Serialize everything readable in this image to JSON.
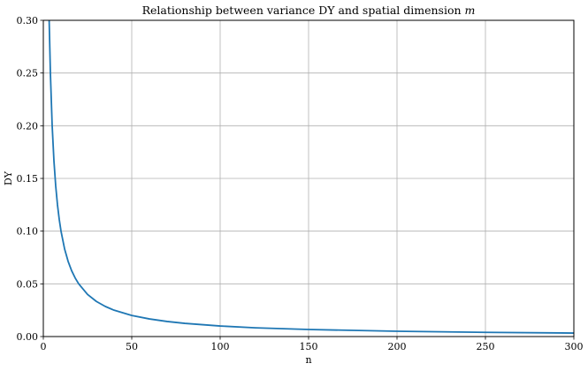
{
  "chart_data": {
    "type": "line",
    "title": "Relationship between variance DY and spatial dimension",
    "title_var": "m",
    "xlabel": "n",
    "ylabel": "DY",
    "xlim": [
      0,
      300
    ],
    "ylim": [
      0,
      0.3
    ],
    "x_ticks": [
      0,
      50,
      100,
      150,
      200,
      250,
      300
    ],
    "y_ticks": [
      0.0,
      0.05,
      0.1,
      0.15,
      0.2,
      0.25,
      0.3
    ],
    "x_tick_labels": [
      "0",
      "50",
      "100",
      "150",
      "200",
      "250",
      "300"
    ],
    "y_tick_labels": [
      "0.00",
      "0.05",
      "0.10",
      "0.15",
      "0.20",
      "0.25",
      "0.30"
    ],
    "grid": true,
    "line_color": "#1f77b4",
    "series": [
      {
        "x": [
          3.3,
          4,
          5,
          6,
          7,
          8,
          9,
          10,
          12,
          14,
          16,
          18,
          20,
          25,
          30,
          35,
          40,
          50,
          60,
          70,
          80,
          100,
          120,
          150,
          200,
          250,
          300
        ],
        "values": [
          0.3,
          0.25,
          0.2,
          0.1667,
          0.1429,
          0.125,
          0.1111,
          0.1,
          0.0833,
          0.0714,
          0.0625,
          0.0556,
          0.05,
          0.04,
          0.0333,
          0.0286,
          0.025,
          0.02,
          0.0167,
          0.0143,
          0.0125,
          0.01,
          0.0083,
          0.0067,
          0.005,
          0.004,
          0.0033
        ]
      }
    ]
  }
}
